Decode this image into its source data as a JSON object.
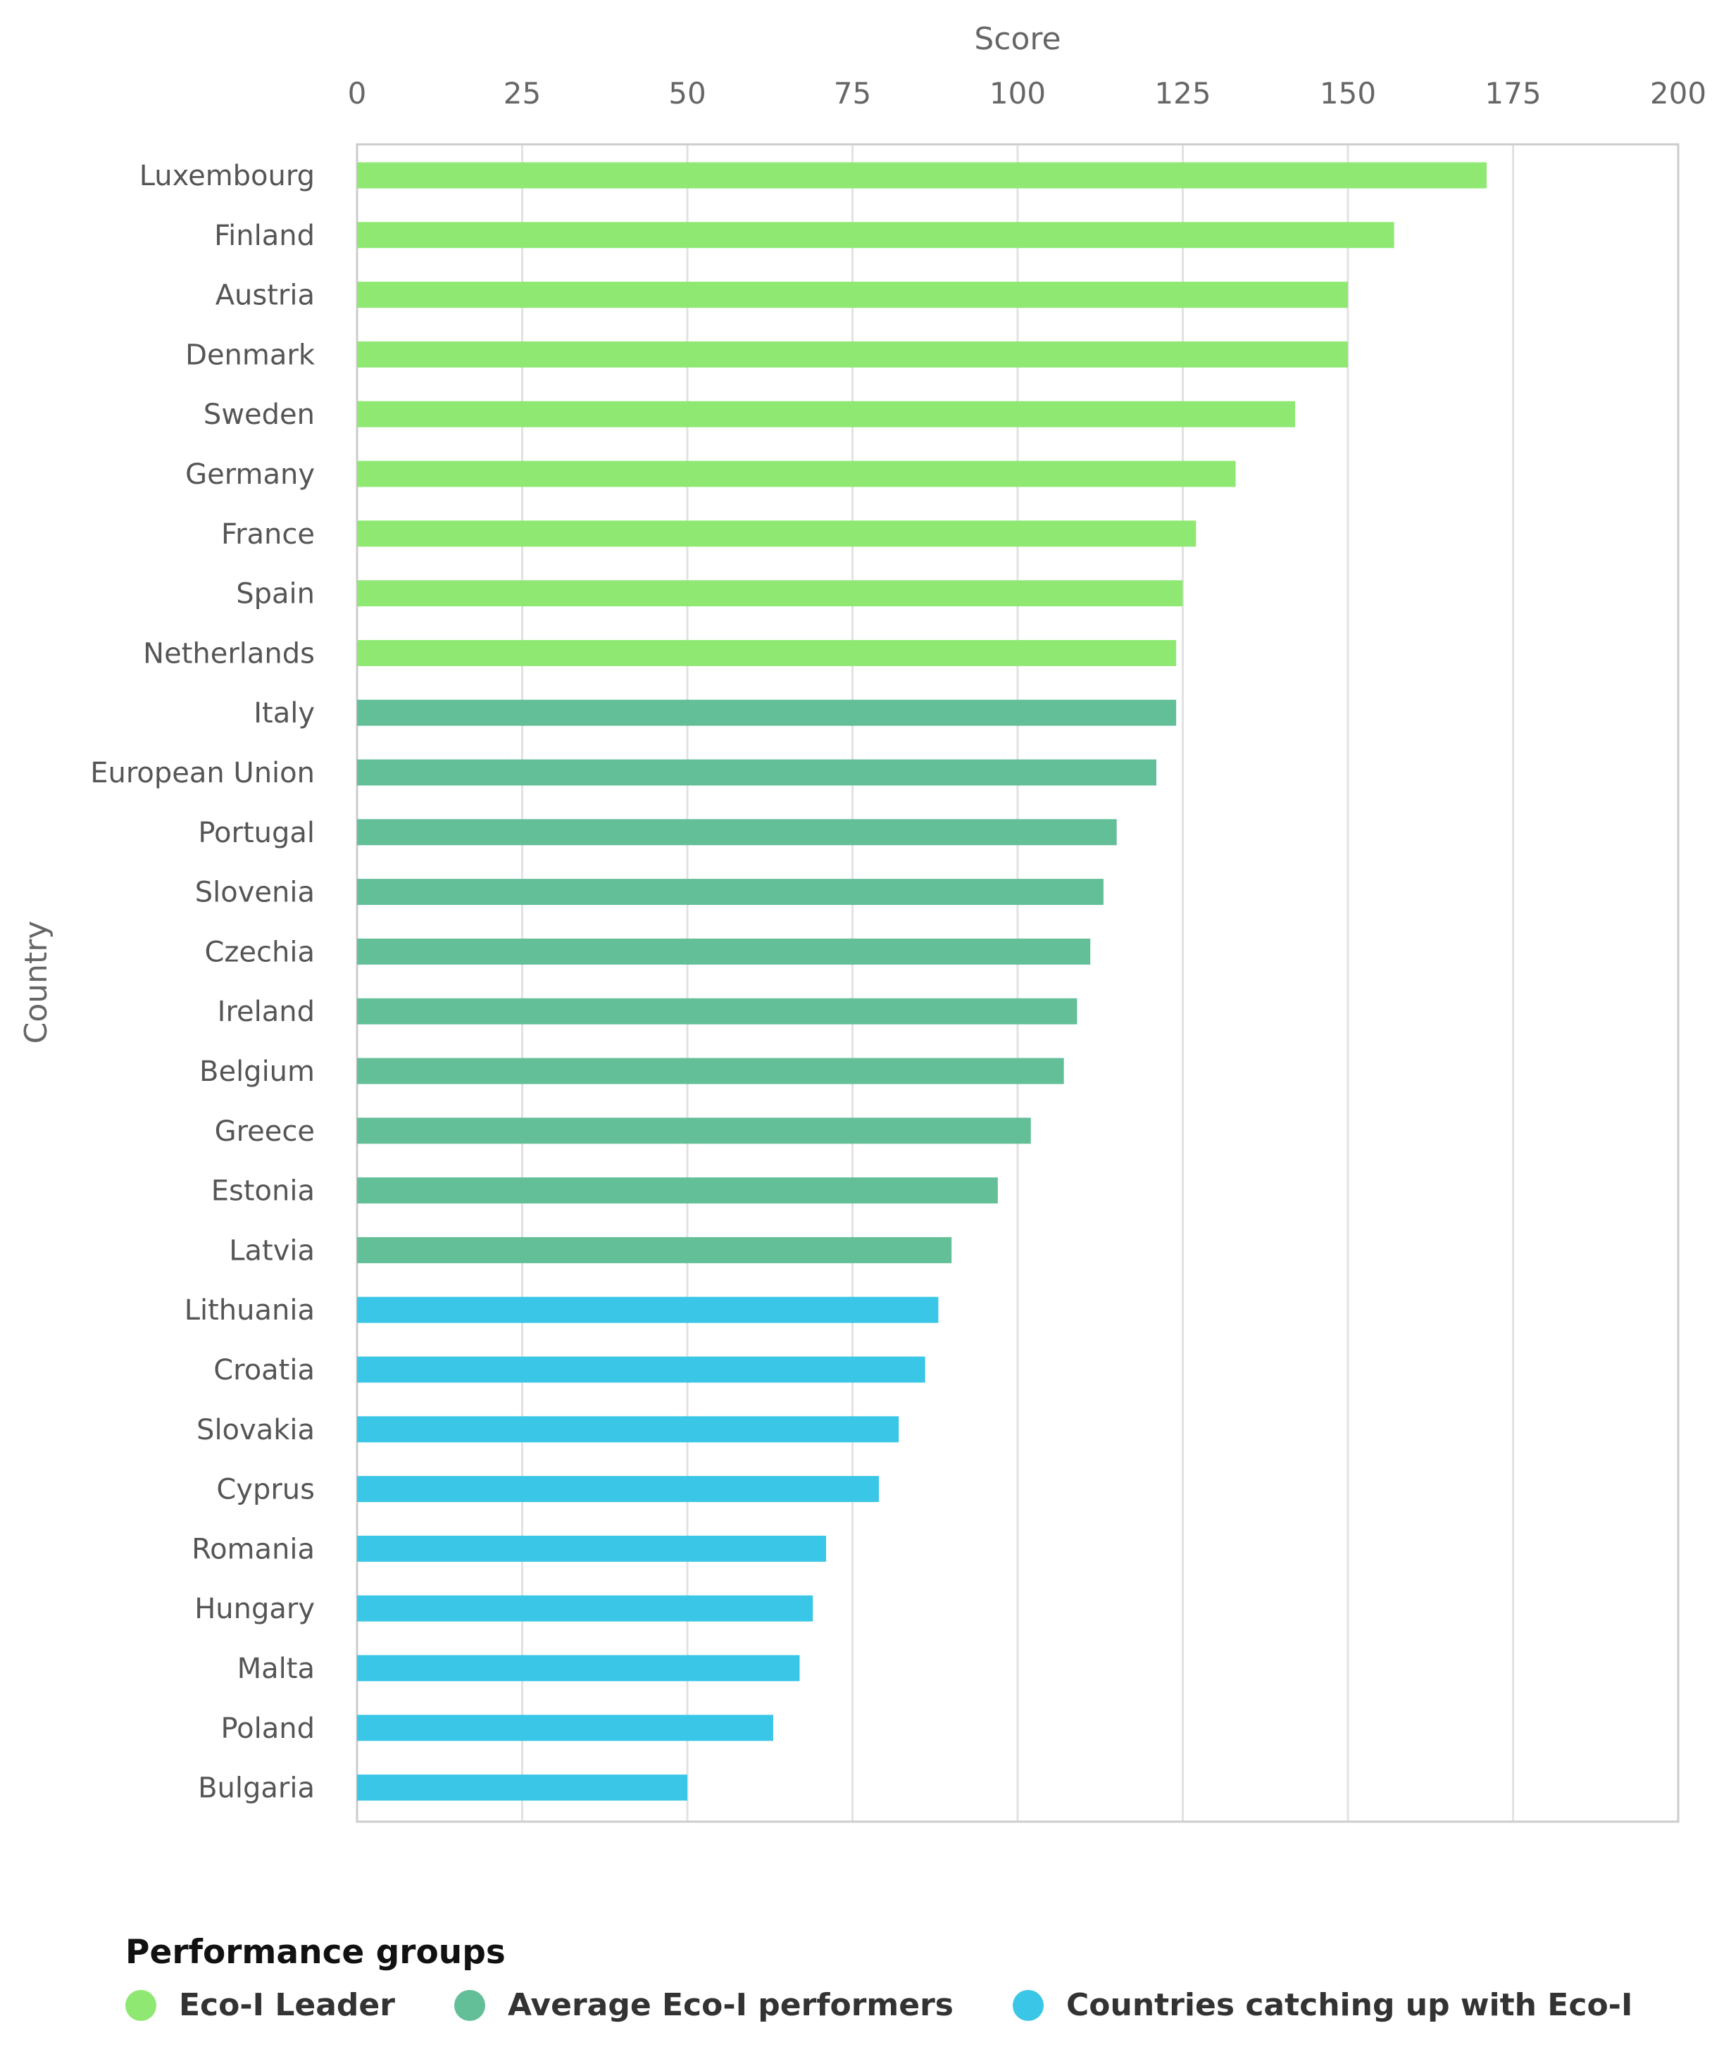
{
  "chart_data": {
    "type": "bar",
    "orientation": "horizontal",
    "xlabel": "Score",
    "ylabel": "Country",
    "xlim": [
      0,
      200
    ],
    "xticks": [
      0,
      25,
      50,
      75,
      100,
      125,
      150,
      175,
      200
    ],
    "grid": true,
    "categories": [
      "Luxembourg",
      "Finland",
      "Austria",
      "Denmark",
      "Sweden",
      "Germany",
      "France",
      "Spain",
      "Netherlands",
      "Italy",
      "European Union",
      "Portugal",
      "Slovenia",
      "Czechia",
      "Ireland",
      "Belgium",
      "Greece",
      "Estonia",
      "Latvia",
      "Lithuania",
      "Croatia",
      "Slovakia",
      "Cyprus",
      "Romania",
      "Hungary",
      "Malta",
      "Poland",
      "Bulgaria"
    ],
    "values": [
      171,
      157,
      150,
      150,
      142,
      133,
      127,
      125,
      124,
      124,
      121,
      115,
      113,
      111,
      109,
      107,
      102,
      97,
      90,
      88,
      86,
      82,
      79,
      71,
      69,
      67,
      63,
      50
    ],
    "groups": [
      "leader",
      "leader",
      "leader",
      "leader",
      "leader",
      "leader",
      "leader",
      "leader",
      "leader",
      "average",
      "average",
      "average",
      "average",
      "average",
      "average",
      "average",
      "average",
      "average",
      "average",
      "catching",
      "catching",
      "catching",
      "catching",
      "catching",
      "catching",
      "catching",
      "catching",
      "catching"
    ],
    "legend": {
      "title": "Performance groups",
      "position": "bottom-left",
      "items": [
        {
          "key": "leader",
          "label": "Eco-I Leader",
          "color": "#8ee872"
        },
        {
          "key": "average",
          "label": "Average Eco-I performers",
          "color": "#62bf98"
        },
        {
          "key": "catching",
          "label": "Countries catching up with Eco-I",
          "color": "#3ac6e6"
        }
      ]
    }
  }
}
